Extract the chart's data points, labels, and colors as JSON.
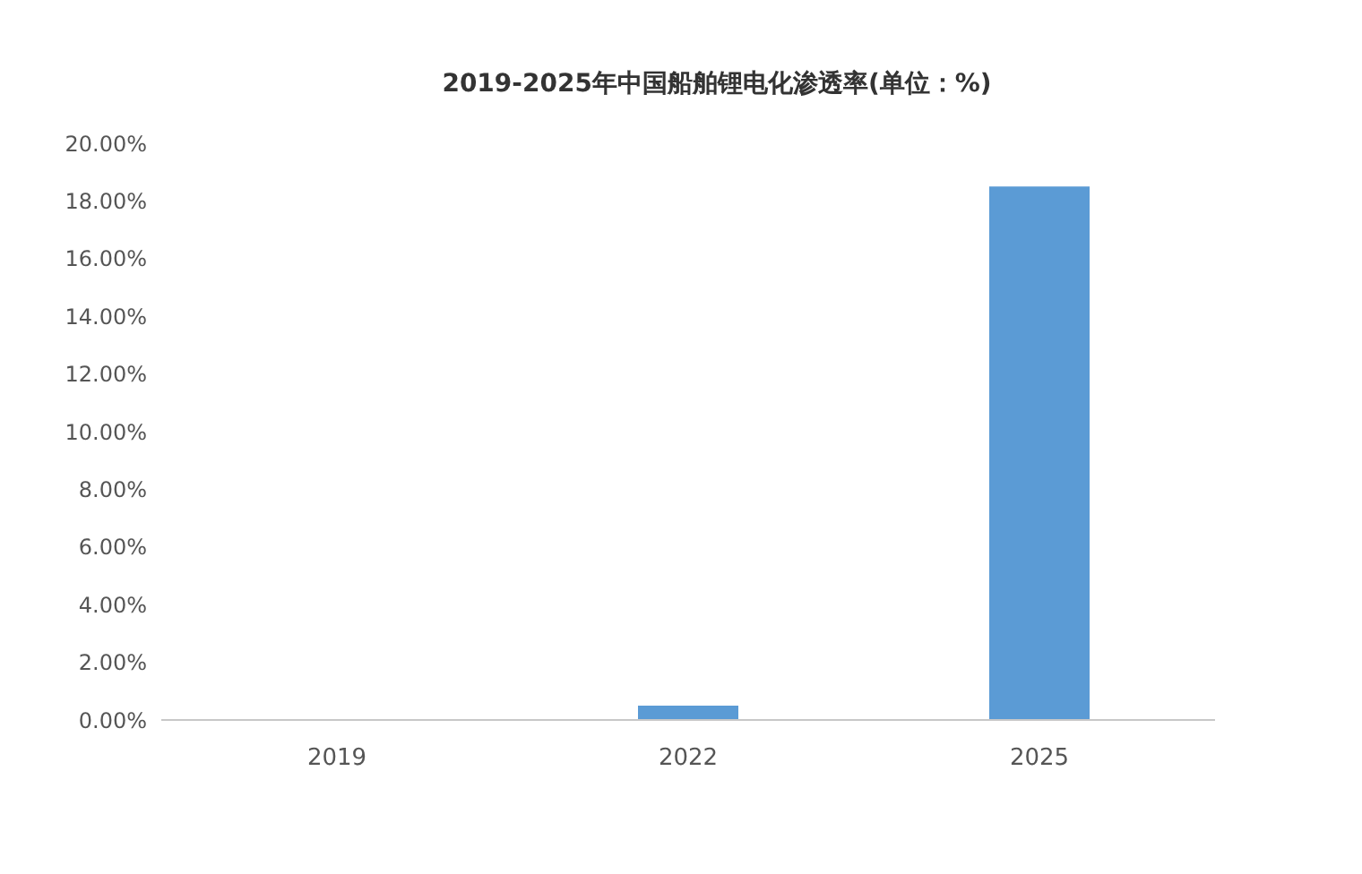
{
  "chart_data": {
    "type": "bar",
    "title": "2019-2025年中国船舶锂电化渗透率(单位：%)",
    "categories": [
      "2019",
      "2022",
      "2025"
    ],
    "values": [
      0,
      0.5,
      18.5
    ],
    "color": "#5b9bd5",
    "ylim": [
      0,
      20
    ],
    "yticks": [
      {
        "value": 0,
        "label": "0.00%"
      },
      {
        "value": 2,
        "label": "2.00%"
      },
      {
        "value": 4,
        "label": "4.00%"
      },
      {
        "value": 6,
        "label": "6.00%"
      },
      {
        "value": 8,
        "label": "8.00%"
      },
      {
        "value": 10,
        "label": "10.00%"
      },
      {
        "value": 12,
        "label": "12.00%"
      },
      {
        "value": 14,
        "label": "14.00%"
      },
      {
        "value": 16,
        "label": "16.00%"
      },
      {
        "value": 18,
        "label": "18.00%"
      },
      {
        "value": 20,
        "label": "20.00%"
      }
    ],
    "grid": false
  }
}
